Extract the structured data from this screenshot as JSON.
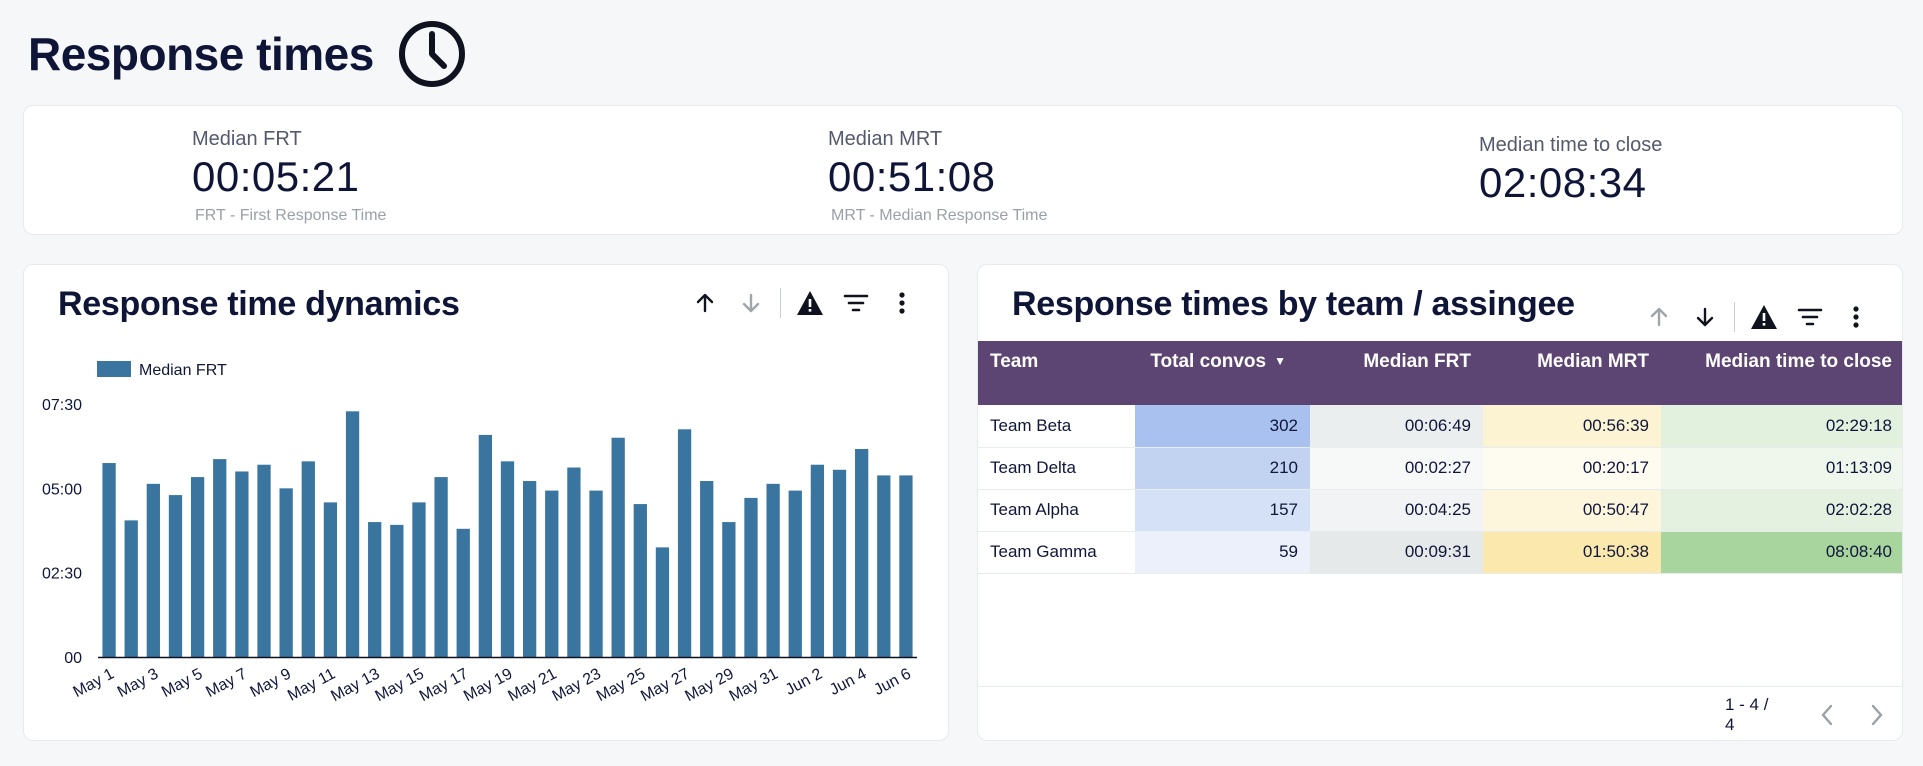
{
  "page": {
    "title": "Response times",
    "icon": "clock-icon"
  },
  "kpis": [
    {
      "label": "Median FRT",
      "value": "00:05:21",
      "note": "FRT - First Response Time"
    },
    {
      "label": "Median MRT",
      "value": "00:51:08",
      "note": "MRT - Median Response Time"
    },
    {
      "label": "Median time to close",
      "value": "02:08:34",
      "note": ""
    }
  ],
  "dynamics": {
    "title": "Response time dynamics",
    "toolbar_icons": [
      "sort-ascending-icon",
      "sort-descending-icon",
      "warning-icon",
      "filter-icon",
      "more-vert-icon"
    ]
  },
  "chart_data": {
    "type": "bar",
    "title": "",
    "xlabel": "",
    "ylabel": "",
    "series": [
      {
        "name": "Median FRT",
        "values": [
          "05:45",
          "04:03",
          "05:08",
          "04:48",
          "05:20",
          "05:52",
          "05:30",
          "05:42",
          "05:00",
          "05:48",
          "04:35",
          "07:17",
          "04:00",
          "03:55",
          "04:35",
          "05:20",
          "03:48",
          "06:35",
          "05:48",
          "05:13",
          "04:56",
          "05:37",
          "04:56",
          "06:30",
          "04:32",
          "03:15",
          "06:45",
          "05:13",
          "04:00",
          "04:43",
          "05:08",
          "04:56",
          "05:42",
          "05:33",
          "06:10",
          "05:23",
          "05:23"
        ]
      }
    ],
    "categories": [
      "May 1",
      "May 2",
      "May 3",
      "May 4",
      "May 5",
      "May 6",
      "May 7",
      "May 8",
      "May 9",
      "May 10",
      "May 11",
      "May 12",
      "May 13",
      "May 14",
      "May 15",
      "May 16",
      "May 17",
      "May 18",
      "May 19",
      "May 20",
      "May 21",
      "May 22",
      "May 23",
      "May 24",
      "May 25",
      "May 26",
      "May 27",
      "May 28",
      "May 29",
      "May 30",
      "May 31",
      "Jun 1",
      "Jun 2",
      "Jun 3",
      "Jun 4",
      "Jun 5",
      "Jun 6"
    ],
    "x_tick_labels": [
      "May 1",
      "May 3",
      "May 5",
      "May 7",
      "May 9",
      "May 11",
      "May 13",
      "May 15",
      "May 17",
      "May 19",
      "May 21",
      "May 23",
      "May 25",
      "May 27",
      "May 29",
      "May 31",
      "Jun 2",
      "Jun 4",
      "Jun 6"
    ],
    "y_ticks": [
      "00",
      "02:30",
      "05:00",
      "07:30"
    ],
    "ylim": [
      "00:00",
      "07:30"
    ],
    "legend_position": "top-left",
    "grid": false,
    "color": "#3a75a0"
  },
  "team_table": {
    "title": "Response times by team / assingee",
    "toolbar_icons": [
      "sort-ascending-icon",
      "sort-descending-icon",
      "warning-icon",
      "filter-icon",
      "more-vert-icon"
    ],
    "columns": [
      "Team",
      "Total convos",
      "Median FRT",
      "Median MRT",
      "Median time to close"
    ],
    "sort_icon": "sort-desc-caret-icon",
    "rows": [
      {
        "team": "Team Beta",
        "total": "302",
        "frt": "00:06:49",
        "mrt": "00:56:39",
        "close": "02:29:18"
      },
      {
        "team": "Team Delta",
        "total": "210",
        "frt": "00:02:27",
        "mrt": "00:20:17",
        "close": "01:13:09"
      },
      {
        "team": "Team Alpha",
        "total": "157",
        "frt": "00:04:25",
        "mrt": "00:50:47",
        "close": "02:02:28"
      },
      {
        "team": "Team Gamma",
        "total": "59",
        "frt": "00:09:31",
        "mrt": "01:50:38",
        "close": "08:08:40"
      }
    ],
    "cell_colors": {
      "total": [
        "#a9c1ef",
        "#c2d3f2",
        "#d5e1f6",
        "#ebf0fa"
      ],
      "frt": [
        "#ebeeef",
        "#f7f8f8",
        "#f1f3f4",
        "#e6e9ea"
      ],
      "mrt": [
        "#fcf3d2",
        "#fefcf1",
        "#fdf6dd",
        "#fbe8ad"
      ],
      "close": [
        "#e2f0de",
        "#eff6ec",
        "#e4f1e0",
        "#a8d49e"
      ]
    },
    "header_color": "#5c4473",
    "pagination": {
      "text": "1 - 4 / 4",
      "prev_icon": "chevron-left-icon",
      "next_icon": "chevron-right-icon"
    }
  }
}
